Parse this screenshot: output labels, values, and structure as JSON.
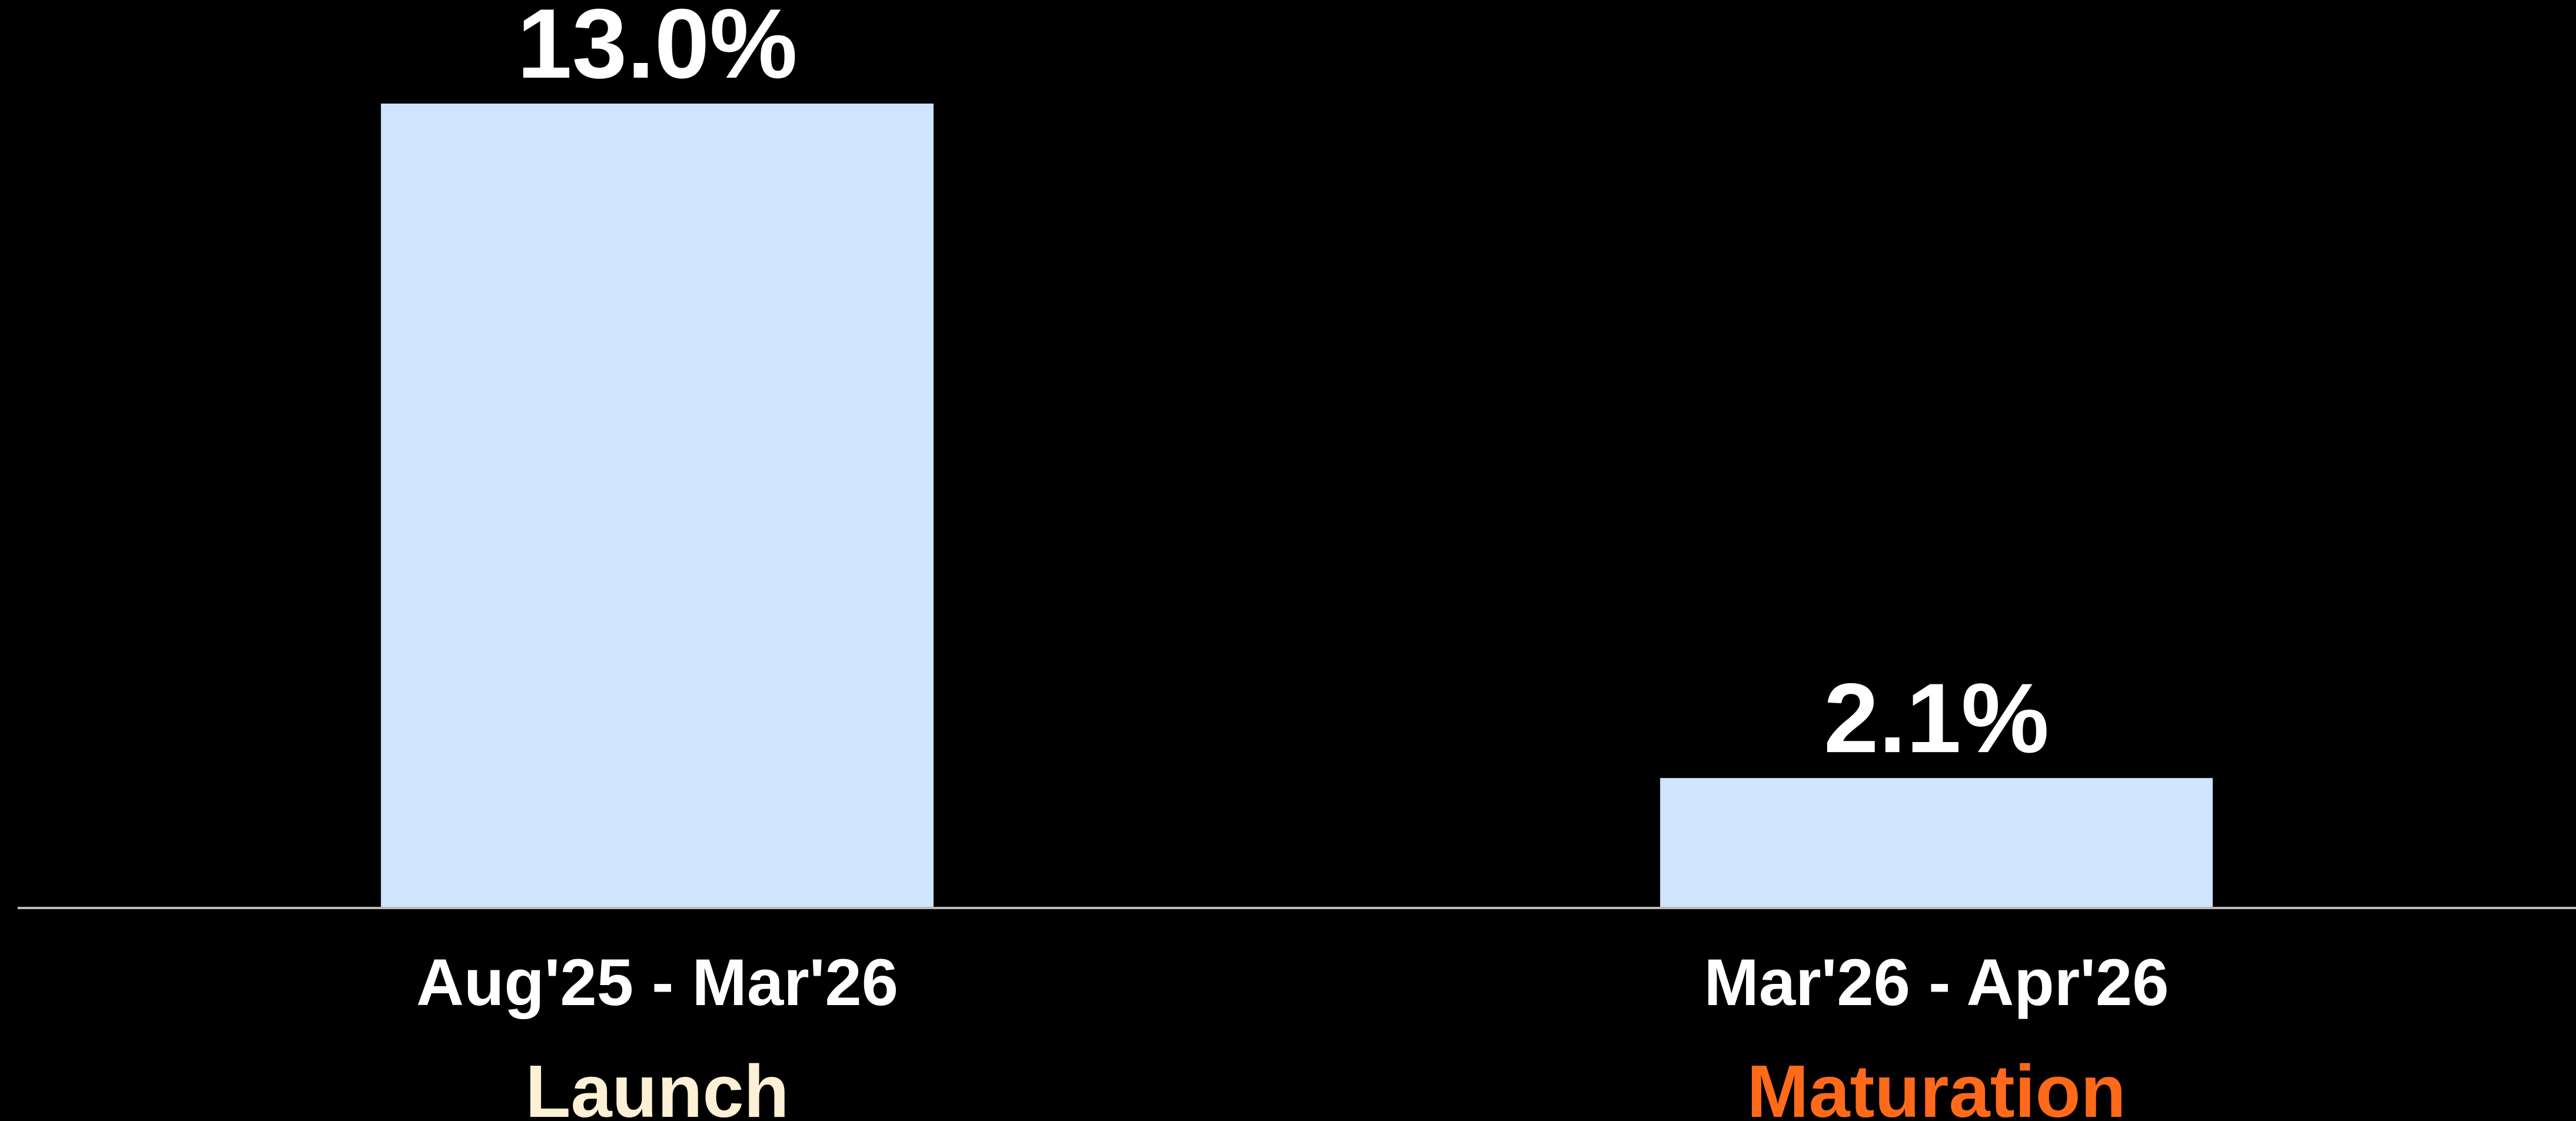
{
  "chart_data": {
    "type": "bar",
    "categories": [
      "Aug'25 - Mar'26",
      "Mar'26 - Apr'26"
    ],
    "values": [
      13.0,
      2.1
    ],
    "value_labels": [
      "13.0%",
      "2.1%"
    ],
    "color": "#cfe4fd",
    "phases": [
      {
        "label": "Launch",
        "color": "#fdf0d5"
      },
      {
        "label": "Maturation",
        "color": "#ff6a1a"
      }
    ]
  }
}
